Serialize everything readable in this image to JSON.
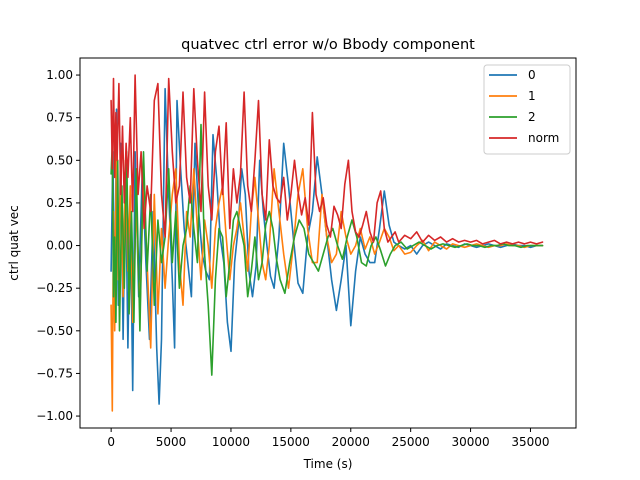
{
  "chart_data": {
    "type": "line",
    "title": "quatvec ctrl error w/o Bbody component",
    "xlabel": "Time (s)",
    "ylabel": "ctrl quat vec",
    "xlim": [
      -2600,
      38800
    ],
    "ylim": [
      -1.07,
      1.1
    ],
    "xticks": [
      0,
      5000,
      10000,
      15000,
      20000,
      25000,
      30000,
      35000
    ],
    "yticks": [
      -1.0,
      -0.75,
      -0.5,
      -0.25,
      0.0,
      0.25,
      0.5,
      0.75,
      1.0
    ],
    "ytick_labels": [
      "−1.00",
      "−0.75",
      "−0.50",
      "−0.25",
      "0.00",
      "0.25",
      "0.50",
      "0.75",
      "1.00"
    ],
    "grid": false,
    "legend_position": "top-right",
    "series": [
      {
        "name": "0",
        "color": "#1f77b4",
        "x": [
          0,
          150,
          300,
          450,
          600,
          800,
          1000,
          1200,
          1400,
          1600,
          1800,
          2000,
          2300,
          2600,
          2900,
          3200,
          3500,
          3800,
          4000,
          4200,
          4500,
          4800,
          5100,
          5300,
          5500,
          5800,
          6100,
          6400,
          6700,
          7000,
          7300,
          7600,
          7900,
          8200,
          8500,
          8800,
          9100,
          9400,
          9700,
          10000,
          10300,
          10600,
          10900,
          11200,
          11500,
          11800,
          12100,
          12400,
          12700,
          13000,
          13300,
          13600,
          14000,
          14400,
          14800,
          15200,
          15600,
          16000,
          16400,
          16800,
          17200,
          17600,
          18000,
          18400,
          18800,
          19200,
          19600,
          20000,
          20400,
          20800,
          21200,
          21600,
          22000,
          22400,
          22800,
          23200,
          23600,
          24000,
          24500,
          25000,
          25500,
          26000,
          26500,
          27000,
          27500,
          28000,
          28500,
          29000,
          29500,
          30000,
          30500,
          31000,
          31500,
          32000,
          32500,
          33000,
          33500,
          34000,
          34500,
          35000,
          35500,
          36000
        ],
        "y": [
          -0.15,
          0.55,
          -0.45,
          0.8,
          -0.35,
          0.6,
          -0.55,
          0.45,
          -0.6,
          0.3,
          -0.85,
          0.55,
          -0.3,
          0.45,
          -0.1,
          -0.55,
          0.2,
          -0.6,
          -0.93,
          -0.55,
          0.92,
          0.3,
          -0.2,
          -0.6,
          0.85,
          0.45,
          0.1,
          -0.1,
          -0.3,
          0.6,
          0.2,
          -0.05,
          -0.15,
          -0.2,
          0.65,
          0.4,
          0.05,
          -0.1,
          -0.45,
          -0.62,
          -0.1,
          0.1,
          0.45,
          0.3,
          -0.15,
          -0.3,
          -0.12,
          0.5,
          0.2,
          0.0,
          -0.18,
          -0.25,
          0.05,
          0.6,
          0.35,
          0.05,
          -0.22,
          -0.28,
          0.05,
          0.2,
          0.52,
          0.3,
          0.05,
          -0.2,
          -0.38,
          -0.2,
          0.0,
          -0.47,
          -0.15,
          0.05,
          -0.05,
          -0.1,
          -0.1,
          0.1,
          0.32,
          0.12,
          0.02,
          0.0,
          -0.02,
          0.0,
          -0.05,
          0.0,
          0.02,
          0.0,
          -0.02,
          0.01,
          0.0,
          -0.01,
          0.01,
          0.0,
          -0.01,
          0.0,
          0.01,
          0.0,
          -0.01,
          0.0,
          0.01,
          0.0,
          0.0,
          -0.01,
          0.0,
          0.0
        ]
      },
      {
        "name": "1",
        "color": "#ff7f0e",
        "x": [
          0,
          100,
          200,
          300,
          450,
          600,
          800,
          1000,
          1200,
          1400,
          1600,
          1800,
          2100,
          2400,
          2700,
          3000,
          3300,
          3600,
          3900,
          4200,
          4500,
          4800,
          5100,
          5400,
          5700,
          6000,
          6300,
          6600,
          6900,
          7200,
          7500,
          7800,
          8100,
          8400,
          8700,
          9000,
          9300,
          9600,
          9900,
          10200,
          10500,
          10800,
          11100,
          11400,
          11700,
          12000,
          12300,
          12600,
          12900,
          13200,
          13600,
          14000,
          14400,
          14800,
          15200,
          15600,
          16000,
          16400,
          16800,
          17200,
          17600,
          18000,
          18400,
          18800,
          19200,
          19600,
          20000,
          20400,
          20800,
          21200,
          21600,
          22000,
          22400,
          22800,
          23200,
          23600,
          24000,
          24500,
          25000,
          25500,
          26000,
          26500,
          27000,
          27500,
          28000,
          28500,
          29000,
          29500,
          30000,
          30500,
          31000,
          31500,
          32000,
          32500,
          33000,
          33500,
          34000,
          34500,
          35000,
          35500,
          36000
        ],
        "y": [
          -0.35,
          -0.97,
          0.2,
          -0.5,
          0.6,
          -0.2,
          0.45,
          -0.3,
          0.5,
          -0.15,
          0.35,
          -0.45,
          0.25,
          -0.4,
          0.4,
          -0.1,
          -0.6,
          0.3,
          -0.4,
          0.1,
          -0.25,
          0.05,
          0.3,
          0.45,
          -0.1,
          -0.35,
          0.2,
          0.05,
          0.45,
          0.1,
          -0.2,
          0.15,
          0.0,
          -0.25,
          0.1,
          0.25,
          0.35,
          0.05,
          -0.2,
          0.0,
          0.1,
          0.25,
          0.05,
          -0.15,
          0.2,
          0.4,
          0.15,
          -0.1,
          -0.2,
          0.0,
          0.45,
          0.2,
          -0.05,
          -0.25,
          0.0,
          0.3,
          0.45,
          0.1,
          -0.1,
          -0.1,
          0.3,
          0.05,
          -0.1,
          -0.05,
          0.2,
          0.05,
          -0.05,
          0.0,
          0.1,
          -0.02,
          0.05,
          -0.05,
          0.02,
          0.1,
          0.05,
          -0.03,
          0.0,
          -0.05,
          -0.04,
          0.0,
          0.03,
          -0.03,
          0.02,
          0.0,
          -0.02,
          0.01,
          0.0,
          -0.01,
          0.0,
          0.01,
          0.0,
          -0.01,
          0.0,
          0.0,
          0.01,
          0.0,
          0.0,
          -0.01,
          0.0,
          0.0,
          0.0
        ]
      },
      {
        "name": "2",
        "color": "#2ca02c",
        "x": [
          0,
          100,
          200,
          300,
          400,
          550,
          700,
          900,
          1100,
          1300,
          1500,
          1700,
          1900,
          2100,
          2400,
          2700,
          3000,
          3300,
          3600,
          3900,
          4200,
          4500,
          4800,
          5100,
          5400,
          5700,
          6000,
          6300,
          6600,
          6900,
          7200,
          7500,
          7800,
          8100,
          8400,
          8700,
          9000,
          9300,
          9600,
          9900,
          10200,
          10500,
          10800,
          11100,
          11400,
          11700,
          12000,
          12300,
          12600,
          12900,
          13200,
          13500,
          13800,
          14100,
          14500,
          14900,
          15300,
          15700,
          16100,
          16500,
          16900,
          17300,
          17700,
          18100,
          18500,
          18900,
          19300,
          19700,
          20100,
          20500,
          20900,
          21300,
          21700,
          22100,
          22500,
          22900,
          23300,
          23700,
          24200,
          24700,
          25200,
          25700,
          26200,
          26700,
          27200,
          27700,
          28200,
          28700,
          29200,
          29700,
          30200,
          30700,
          31200,
          31700,
          32200,
          32700,
          33200,
          33700,
          34200,
          34700,
          35200,
          35700,
          36000
        ],
        "y": [
          0.42,
          0.6,
          -0.3,
          0.05,
          -0.45,
          0.5,
          -0.5,
          0.35,
          -0.25,
          0.55,
          -0.4,
          0.2,
          -0.45,
          0.45,
          -0.5,
          0.55,
          -0.15,
          0.3,
          -0.35,
          0.15,
          -0.1,
          0.05,
          0.45,
          -0.1,
          0.2,
          -0.25,
          0.0,
          0.1,
          0.35,
          0.1,
          -0.1,
          0.71,
          -0.05,
          -0.35,
          -0.76,
          -0.2,
          0.1,
          0.05,
          -0.3,
          -0.1,
          0.15,
          0.2,
          0.1,
          0.0,
          -0.3,
          -0.15,
          0.05,
          -0.2,
          -0.1,
          0.12,
          0.2,
          0.1,
          -0.08,
          -0.2,
          -0.28,
          -0.1,
          0.05,
          0.15,
          0.1,
          -0.05,
          -0.1,
          -0.15,
          -0.05,
          0.05,
          0.1,
          0.0,
          -0.08,
          0.05,
          0.15,
          0.05,
          -0.1,
          -0.12,
          0.0,
          0.05,
          -0.03,
          -0.12,
          -0.05,
          0.0,
          0.02,
          -0.02,
          0.0,
          0.02,
          0.0,
          -0.02,
          0.0,
          0.01,
          0.0,
          -0.01,
          0.0,
          0.01,
          0.0,
          0.0,
          -0.01,
          0.0,
          0.0,
          0.01,
          0.0,
          0.0,
          -0.01,
          0.0,
          0.0,
          0.0,
          0.0
        ]
      },
      {
        "name": "norm",
        "color": "#d62728",
        "x": [
          0,
          100,
          200,
          300,
          400,
          500,
          650,
          800,
          950,
          1100,
          1250,
          1400,
          1600,
          1800,
          2000,
          2250,
          2500,
          2750,
          3000,
          3300,
          3600,
          3900,
          4200,
          4500,
          4800,
          5100,
          5400,
          5700,
          6000,
          6300,
          6600,
          6900,
          7200,
          7500,
          7800,
          8100,
          8400,
          8700,
          9000,
          9300,
          9600,
          9900,
          10200,
          10500,
          10800,
          11100,
          11400,
          11700,
          12000,
          12300,
          12600,
          12900,
          13200,
          13500,
          13800,
          14100,
          14400,
          14700,
          15000,
          15300,
          15600,
          15900,
          16200,
          16500,
          16800,
          17100,
          17400,
          17700,
          18000,
          18300,
          18600,
          18900,
          19200,
          19500,
          19800,
          20100,
          20400,
          20700,
          21000,
          21300,
          21600,
          21900,
          22200,
          22500,
          22800,
          23100,
          23400,
          23700,
          24000,
          24500,
          25000,
          25500,
          26000,
          26500,
          27000,
          27500,
          28000,
          28500,
          29000,
          29500,
          30000,
          30500,
          31000,
          31500,
          32000,
          32500,
          33000,
          33500,
          34000,
          34500,
          35000,
          35500,
          36000
        ],
        "y": [
          0.85,
          0.45,
          0.98,
          0.4,
          0.78,
          0.5,
          0.95,
          0.3,
          0.7,
          0.25,
          0.6,
          0.4,
          0.75,
          0.2,
          1.0,
          0.3,
          0.55,
          0.1,
          0.35,
          0.2,
          0.85,
          0.95,
          0.3,
          0.05,
          0.98,
          0.55,
          0.25,
          0.35,
          0.9,
          0.4,
          0.25,
          0.92,
          0.5,
          0.2,
          0.9,
          0.35,
          0.15,
          0.55,
          0.7,
          0.3,
          0.72,
          0.1,
          0.45,
          0.25,
          0.42,
          0.9,
          0.35,
          0.2,
          0.5,
          0.85,
          0.3,
          0.15,
          0.62,
          0.35,
          0.28,
          0.25,
          0.4,
          0.15,
          0.3,
          0.5,
          0.32,
          0.18,
          0.28,
          0.12,
          0.78,
          0.3,
          0.2,
          0.28,
          0.12,
          0.05,
          0.23,
          0.18,
          0.1,
          0.36,
          0.5,
          0.2,
          0.08,
          0.05,
          0.12,
          0.2,
          0.08,
          0.02,
          0.25,
          0.32,
          0.1,
          0.02,
          0.05,
          0.08,
          0.02,
          0.06,
          0.04,
          0.08,
          0.02,
          0.06,
          0.03,
          0.05,
          0.02,
          0.04,
          0.02,
          0.03,
          0.02,
          0.03,
          0.01,
          0.02,
          0.03,
          0.01,
          0.02,
          0.01,
          0.02,
          0.01,
          0.02,
          0.01,
          0.02
        ]
      }
    ]
  }
}
